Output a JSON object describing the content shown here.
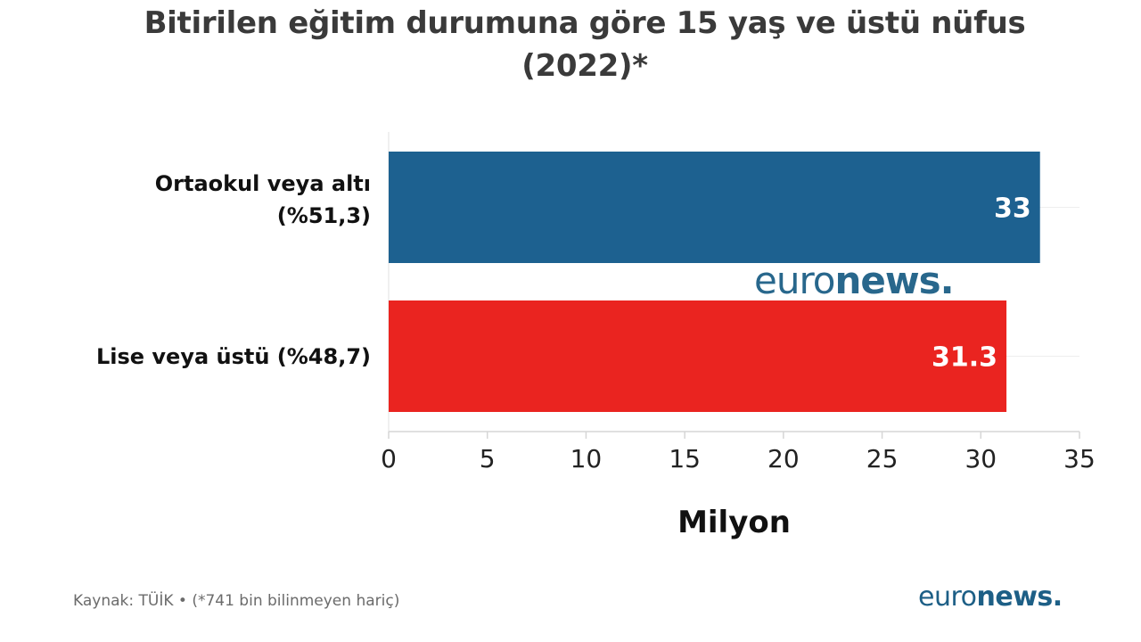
{
  "title_lines": [
    "Bitirilen eğitim durumuna göre 15 yaş ve üstü nüfus",
    "(2022)*"
  ],
  "footer": {
    "source": "Kaynak: TÜİK • (*741 bin bilinmeyen hariç)"
  },
  "brand": {
    "light": "euro",
    "bold": "news."
  },
  "colors": {
    "bar_primary": "#1d6190",
    "bar_secondary": "#ea2420",
    "brand": "#1d5f86"
  },
  "chart_data": {
    "type": "bar",
    "orientation": "horizontal",
    "title": "Bitirilen eğitim durumuna göre 15 yaş ve üstü nüfus (2022)*",
    "categories": [
      {
        "lines": [
          "Ortaokul veya altı",
          "(%51,3)"
        ]
      },
      {
        "lines": [
          "Lise veya üstü (%48,7)"
        ]
      }
    ],
    "values": [
      33,
      31.3
    ],
    "value_labels": [
      "33",
      "31.3"
    ],
    "xlabel": "Milyon",
    "ylabel": "",
    "xlim": [
      0,
      35
    ],
    "xticks": [
      "0",
      "5",
      "10",
      "15",
      "20",
      "25",
      "30",
      "35"
    ],
    "grid": true
  }
}
